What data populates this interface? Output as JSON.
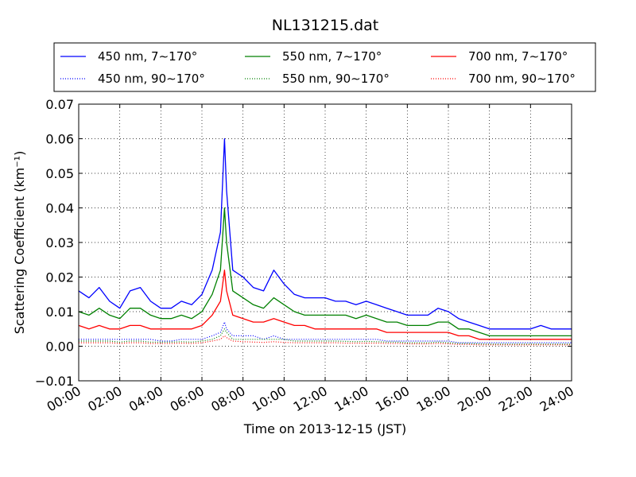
{
  "chart_data": {
    "type": "line",
    "title": "NL131215.dat",
    "xlabel": "Time on 2013-12-15 (JST)",
    "ylabel": "Scattering Coefficient (km⁻¹)",
    "x_ticks": [
      "00:00",
      "02:00",
      "04:00",
      "06:00",
      "08:00",
      "10:00",
      "12:00",
      "14:00",
      "16:00",
      "18:00",
      "20:00",
      "22:00",
      "24:00"
    ],
    "y_ticks": [
      "−0.01",
      "0.00",
      "0.01",
      "0.02",
      "0.03",
      "0.04",
      "0.05",
      "0.06",
      "0.07"
    ],
    "xlim_hours": [
      0,
      24
    ],
    "ylim": [
      -0.01,
      0.07
    ],
    "grid": true,
    "legend_position": "top",
    "x_hours": [
      0,
      0.5,
      1,
      1.5,
      2,
      2.5,
      3,
      3.5,
      4,
      4.5,
      5,
      5.5,
      6,
      6.5,
      6.9,
      7.1,
      7.2,
      7.5,
      8,
      8.5,
      9,
      9.5,
      10,
      10.5,
      11,
      11.5,
      12,
      12.5,
      13,
      13.5,
      14,
      14.5,
      15,
      15.5,
      16,
      16.5,
      17,
      17.5,
      18,
      18.5,
      19,
      19.5,
      20,
      20.5,
      21,
      21.5,
      22,
      22.5,
      23,
      23.5,
      24
    ],
    "series": [
      {
        "name": "450 nm, 7∼170°",
        "color": "#0000ff",
        "style": "solid",
        "values": [
          0.016,
          0.014,
          0.017,
          0.013,
          0.011,
          0.016,
          0.017,
          0.013,
          0.011,
          0.011,
          0.013,
          0.012,
          0.015,
          0.022,
          0.033,
          0.06,
          0.045,
          0.022,
          0.02,
          0.017,
          0.016,
          0.022,
          0.018,
          0.015,
          0.014,
          0.014,
          0.014,
          0.013,
          0.013,
          0.012,
          0.013,
          0.012,
          0.011,
          0.01,
          0.009,
          0.009,
          0.009,
          0.011,
          0.01,
          0.008,
          0.007,
          0.006,
          0.005,
          0.005,
          0.005,
          0.005,
          0.005,
          0.006,
          0.005,
          0.005,
          0.005
        ]
      },
      {
        "name": "550 nm, 7∼170°",
        "color": "#008000",
        "style": "solid",
        "values": [
          0.01,
          0.009,
          0.011,
          0.009,
          0.008,
          0.011,
          0.011,
          0.009,
          0.008,
          0.008,
          0.009,
          0.008,
          0.01,
          0.015,
          0.022,
          0.04,
          0.03,
          0.016,
          0.014,
          0.012,
          0.011,
          0.014,
          0.012,
          0.01,
          0.009,
          0.009,
          0.009,
          0.009,
          0.009,
          0.008,
          0.009,
          0.008,
          0.007,
          0.007,
          0.006,
          0.006,
          0.006,
          0.007,
          0.007,
          0.005,
          0.005,
          0.004,
          0.003,
          0.003,
          0.003,
          0.003,
          0.003,
          0.003,
          0.003,
          0.003,
          0.003
        ]
      },
      {
        "name": "700 nm, 7∼170°",
        "color": "#ff0000",
        "style": "solid",
        "values": [
          0.006,
          0.005,
          0.006,
          0.005,
          0.005,
          0.006,
          0.006,
          0.005,
          0.005,
          0.005,
          0.005,
          0.005,
          0.006,
          0.009,
          0.013,
          0.022,
          0.016,
          0.009,
          0.008,
          0.007,
          0.007,
          0.008,
          0.007,
          0.006,
          0.006,
          0.005,
          0.005,
          0.005,
          0.005,
          0.005,
          0.005,
          0.005,
          0.004,
          0.004,
          0.004,
          0.004,
          0.004,
          0.004,
          0.004,
          0.003,
          0.003,
          0.002,
          0.002,
          0.002,
          0.002,
          0.002,
          0.002,
          0.002,
          0.002,
          0.002,
          0.002
        ]
      },
      {
        "name": "450 nm, 90∼170°",
        "color": "#0000ff",
        "style": "dotted",
        "values": [
          0.002,
          0.002,
          0.002,
          0.002,
          0.002,
          0.002,
          0.002,
          0.002,
          0.0015,
          0.0015,
          0.002,
          0.002,
          0.002,
          0.003,
          0.004,
          0.007,
          0.005,
          0.003,
          0.003,
          0.003,
          0.002,
          0.003,
          0.002,
          0.002,
          0.002,
          0.002,
          0.002,
          0.002,
          0.002,
          0.002,
          0.002,
          0.002,
          0.0015,
          0.0015,
          0.0015,
          0.0015,
          0.0015,
          0.0015,
          0.0015,
          0.001,
          0.001,
          0.001,
          0.001,
          0.001,
          0.001,
          0.001,
          0.001,
          0.001,
          0.001,
          0.001,
          0.001
        ]
      },
      {
        "name": "550 nm, 90∼170°",
        "color": "#008000",
        "style": "dotted",
        "values": [
          0.0015,
          0.0015,
          0.0015,
          0.0015,
          0.0012,
          0.0015,
          0.0015,
          0.0012,
          0.0012,
          0.0012,
          0.0013,
          0.0012,
          0.0015,
          0.002,
          0.003,
          0.005,
          0.004,
          0.002,
          0.002,
          0.002,
          0.002,
          0.002,
          0.002,
          0.0015,
          0.0015,
          0.0015,
          0.0015,
          0.0015,
          0.0014,
          0.0013,
          0.0014,
          0.0013,
          0.0012,
          0.0012,
          0.001,
          0.001,
          0.001,
          0.0012,
          0.001,
          0.0008,
          0.0008,
          0.0007,
          0.0006,
          0.0006,
          0.0006,
          0.0006,
          0.0006,
          0.0006,
          0.0006,
          0.0006,
          0.0006
        ]
      },
      {
        "name": "700 nm, 90∼170°",
        "color": "#ff0000",
        "style": "dotted",
        "values": [
          0.001,
          0.001,
          0.001,
          0.001,
          0.0008,
          0.001,
          0.001,
          0.0008,
          0.0008,
          0.0008,
          0.0009,
          0.0008,
          0.001,
          0.0015,
          0.002,
          0.003,
          0.0025,
          0.0015,
          0.0013,
          0.0012,
          0.0011,
          0.0013,
          0.0011,
          0.001,
          0.001,
          0.001,
          0.001,
          0.001,
          0.0009,
          0.0009,
          0.0009,
          0.0009,
          0.0008,
          0.0008,
          0.0007,
          0.0007,
          0.0007,
          0.0008,
          0.0007,
          0.0005,
          0.0005,
          0.0004,
          0.0004,
          0.0004,
          0.0004,
          0.0004,
          0.0004,
          0.0004,
          0.0004,
          0.0004,
          0.0004
        ]
      }
    ]
  }
}
